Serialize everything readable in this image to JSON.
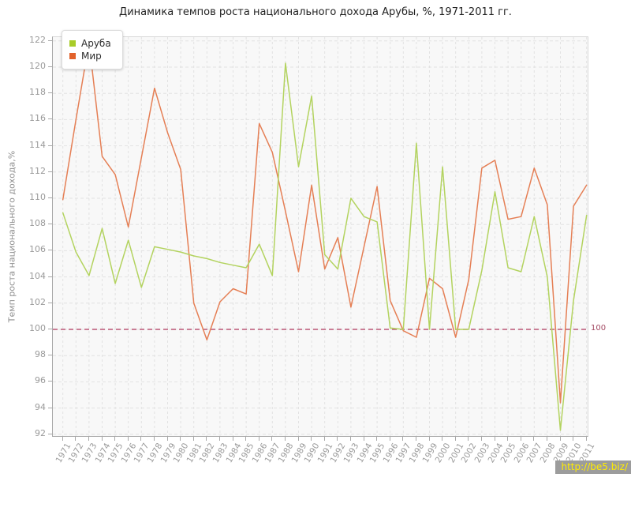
{
  "title": "Динамика темпов роста национального дохода Арубы, %, 1971-2011 гг.",
  "watermark": {
    "text": "http://be5.biz/"
  },
  "legend": {
    "items": [
      "Аруба",
      "Мир"
    ]
  },
  "colors": {
    "aruba_line": "#b3d35f",
    "aruba_marker": "#a8cc29",
    "world_line": "#e57f55",
    "world_marker": "#e2622c",
    "refline": "#bb5575",
    "refline_label": "#a34a63",
    "grid": "#e2e2e2",
    "axis_text": "#9a9a9a"
  },
  "chart_data": {
    "type": "line",
    "title": "Динамика темпов роста национального дохода Арубы, %, 1971-2011 гг.",
    "xlabel": "",
    "ylabel": "Темп роста национального дохода,%",
    "ylim": [
      92,
      122
    ],
    "ytick_step": 2,
    "grid": true,
    "legend_position": "top-left",
    "refline": {
      "value": 100,
      "label": "100"
    },
    "x": [
      1971,
      1972,
      1973,
      1974,
      1975,
      1976,
      1977,
      1978,
      1979,
      1980,
      1981,
      1982,
      1983,
      1984,
      1985,
      1986,
      1987,
      1988,
      1989,
      1990,
      1991,
      1992,
      1993,
      1994,
      1995,
      1996,
      1997,
      1998,
      1999,
      2000,
      2001,
      2002,
      2003,
      2004,
      2005,
      2006,
      2007,
      2008,
      2009,
      2010,
      2011
    ],
    "series": [
      {
        "name": "Аруба",
        "key": "aruba",
        "values": [
          108.9,
          105.9,
          104.1,
          107.7,
          103.5,
          106.8,
          103.2,
          106.3,
          106.1,
          105.9,
          105.6,
          105.4,
          105.1,
          104.9,
          104.7,
          106.5,
          104.1,
          120.3,
          112.4,
          117.8,
          105.7,
          104.6,
          110.0,
          108.6,
          108.2,
          100.1,
          100.0,
          114.2,
          100.0,
          112.4,
          100.0,
          100.0,
          104.5,
          110.5,
          104.7,
          104.4,
          108.6,
          104.0,
          92.3,
          102.2,
          108.7
        ]
      },
      {
        "name": "Мир",
        "key": "world",
        "values": [
          109.9,
          116.0,
          121.9,
          113.2,
          111.8,
          107.8,
          113.1,
          118.4,
          115.0,
          112.2,
          102.0,
          99.2,
          102.1,
          103.1,
          102.7,
          115.7,
          113.5,
          109.0,
          104.4,
          111.0,
          104.6,
          107.0,
          101.7,
          106.3,
          110.9,
          102.2,
          99.9,
          99.4,
          103.9,
          103.1,
          99.4,
          103.8,
          112.3,
          112.9,
          108.4,
          108.6,
          112.3,
          109.5,
          94.4,
          109.4,
          111.0
        ]
      }
    ]
  }
}
